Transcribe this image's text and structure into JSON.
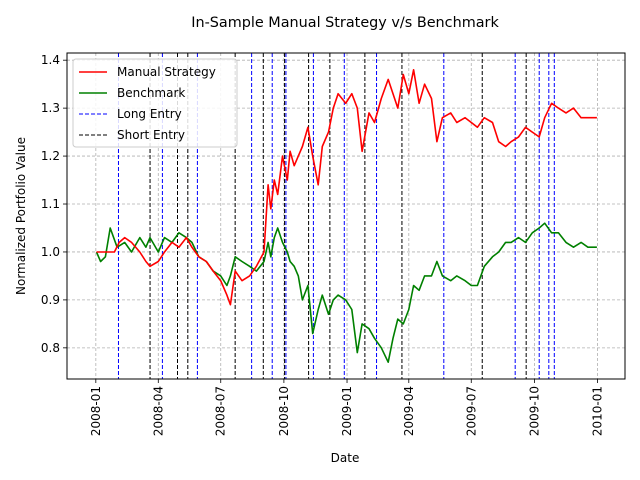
{
  "chart_data": {
    "type": "line",
    "title": "In-Sample Manual Strategy v/s Benchmark",
    "xlabel": "Date",
    "ylabel": "Normalized Portfolio Value",
    "xlim": [
      "2007-11-20",
      "2010-02-10"
    ],
    "ylim": [
      0.735,
      1.415
    ],
    "grid": true,
    "legend_position": "top-left",
    "x_ticks": [
      "2008-01",
      "2008-04",
      "2008-07",
      "2008-10",
      "2009-01",
      "2009-04",
      "2009-07",
      "2009-10",
      "2010-01"
    ],
    "y_ticks": [
      0.8,
      0.9,
      1.0,
      1.1,
      1.2,
      1.3,
      1.4
    ],
    "y_tick_labels": [
      "0.8",
      "0.9",
      "1.0",
      "1.1",
      "1.2",
      "1.3",
      "1.4"
    ],
    "legend": [
      {
        "label": "Manual Strategy",
        "color": "#ff0000",
        "style": "solid"
      },
      {
        "label": "Benchmark",
        "color": "#008000",
        "style": "solid"
      },
      {
        "label": "Long Entry",
        "color": "#0000ff",
        "style": "dashed"
      },
      {
        "label": "Short Entry",
        "color": "#000000",
        "style": "dashed"
      }
    ],
    "series": [
      {
        "name": "Manual Strategy",
        "color": "#ff0000",
        "x": [
          "2008-01-02",
          "2008-01-15",
          "2008-01-28",
          "2008-02-04",
          "2008-02-12",
          "2008-02-22",
          "2008-03-05",
          "2008-03-14",
          "2008-03-20",
          "2008-04-01",
          "2008-04-10",
          "2008-04-21",
          "2008-05-01",
          "2008-05-12",
          "2008-05-20",
          "2008-05-30",
          "2008-06-10",
          "2008-06-20",
          "2008-07-01",
          "2008-07-10",
          "2008-07-15",
          "2008-07-22",
          "2008-08-01",
          "2008-08-12",
          "2008-08-22",
          "2008-09-02",
          "2008-09-08",
          "2008-09-12",
          "2008-09-17",
          "2008-09-22",
          "2008-09-29",
          "2008-10-06",
          "2008-10-10",
          "2008-10-16",
          "2008-10-22",
          "2008-10-28",
          "2008-11-05",
          "2008-11-12",
          "2008-11-20",
          "2008-11-26",
          "2008-12-05",
          "2008-12-12",
          "2008-12-19",
          "2008-12-30",
          "2009-01-08",
          "2009-01-16",
          "2009-01-23",
          "2009-02-02",
          "2009-02-10",
          "2009-02-20",
          "2009-03-02",
          "2009-03-09",
          "2009-03-16",
          "2009-03-24",
          "2009-04-01",
          "2009-04-08",
          "2009-04-16",
          "2009-04-24",
          "2009-05-04",
          "2009-05-12",
          "2009-05-20",
          "2009-06-01",
          "2009-06-10",
          "2009-06-22",
          "2009-07-01",
          "2009-07-10",
          "2009-07-20",
          "2009-08-01",
          "2009-08-10",
          "2009-08-20",
          "2009-08-28",
          "2009-09-08",
          "2009-09-18",
          "2009-09-28",
          "2009-10-08",
          "2009-10-16",
          "2009-10-26",
          "2009-11-05",
          "2009-11-16",
          "2009-11-27",
          "2009-12-08",
          "2009-12-18",
          "2009-12-31"
        ],
        "y": [
          1.0,
          1.0,
          1.0,
          1.02,
          1.03,
          1.02,
          1.0,
          0.98,
          0.97,
          0.98,
          1.0,
          1.02,
          1.01,
          1.03,
          1.01,
          0.99,
          0.98,
          0.96,
          0.94,
          0.91,
          0.89,
          0.96,
          0.94,
          0.95,
          0.97,
          1.0,
          1.14,
          1.09,
          1.15,
          1.12,
          1.2,
          1.15,
          1.21,
          1.18,
          1.2,
          1.22,
          1.26,
          1.2,
          1.14,
          1.22,
          1.25,
          1.3,
          1.33,
          1.31,
          1.33,
          1.3,
          1.21,
          1.29,
          1.27,
          1.32,
          1.36,
          1.33,
          1.3,
          1.37,
          1.33,
          1.38,
          1.31,
          1.35,
          1.32,
          1.23,
          1.28,
          1.29,
          1.27,
          1.28,
          1.27,
          1.26,
          1.28,
          1.27,
          1.23,
          1.22,
          1.23,
          1.24,
          1.26,
          1.25,
          1.24,
          1.28,
          1.31,
          1.3,
          1.29,
          1.3,
          1.28,
          1.28,
          1.28
        ]
      },
      {
        "name": "Benchmark",
        "color": "#008000",
        "x": [
          "2008-01-02",
          "2008-01-08",
          "2008-01-15",
          "2008-01-22",
          "2008-02-01",
          "2008-02-12",
          "2008-02-22",
          "2008-03-05",
          "2008-03-14",
          "2008-03-20",
          "2008-04-01",
          "2008-04-10",
          "2008-04-21",
          "2008-05-01",
          "2008-05-12",
          "2008-05-20",
          "2008-05-30",
          "2008-06-10",
          "2008-06-20",
          "2008-07-01",
          "2008-07-10",
          "2008-07-15",
          "2008-07-22",
          "2008-08-01",
          "2008-08-12",
          "2008-08-22",
          "2008-09-02",
          "2008-09-08",
          "2008-09-12",
          "2008-09-17",
          "2008-09-22",
          "2008-09-29",
          "2008-10-06",
          "2008-10-10",
          "2008-10-16",
          "2008-10-22",
          "2008-10-28",
          "2008-11-05",
          "2008-11-12",
          "2008-11-20",
          "2008-11-26",
          "2008-12-05",
          "2008-12-12",
          "2008-12-19",
          "2008-12-30",
          "2009-01-08",
          "2009-01-16",
          "2009-01-23",
          "2009-02-02",
          "2009-02-10",
          "2009-02-20",
          "2009-03-02",
          "2009-03-09",
          "2009-03-16",
          "2009-03-24",
          "2009-04-01",
          "2009-04-08",
          "2009-04-16",
          "2009-04-24",
          "2009-05-04",
          "2009-05-12",
          "2009-05-20",
          "2009-06-01",
          "2009-06-10",
          "2009-06-22",
          "2009-07-01",
          "2009-07-10",
          "2009-07-20",
          "2009-08-01",
          "2009-08-10",
          "2009-08-20",
          "2009-08-28",
          "2009-09-08",
          "2009-09-18",
          "2009-09-28",
          "2009-10-08",
          "2009-10-16",
          "2009-10-26",
          "2009-11-05",
          "2009-11-16",
          "2009-11-27",
          "2009-12-08",
          "2009-12-18",
          "2009-12-31"
        ],
        "y": [
          1.0,
          0.98,
          0.99,
          1.05,
          1.01,
          1.02,
          1.0,
          1.03,
          1.01,
          1.03,
          1.0,
          1.03,
          1.02,
          1.04,
          1.03,
          1.02,
          0.99,
          0.98,
          0.96,
          0.95,
          0.93,
          0.95,
          0.99,
          0.98,
          0.97,
          0.96,
          0.98,
          1.02,
          0.99,
          1.03,
          1.05,
          1.02,
          1.0,
          0.98,
          0.97,
          0.95,
          0.9,
          0.93,
          0.83,
          0.88,
          0.91,
          0.87,
          0.9,
          0.91,
          0.9,
          0.88,
          0.79,
          0.85,
          0.84,
          0.82,
          0.8,
          0.77,
          0.82,
          0.86,
          0.85,
          0.88,
          0.93,
          0.92,
          0.95,
          0.95,
          0.98,
          0.95,
          0.94,
          0.95,
          0.94,
          0.93,
          0.93,
          0.97,
          0.99,
          1.0,
          1.02,
          1.02,
          1.03,
          1.02,
          1.04,
          1.05,
          1.06,
          1.04,
          1.04,
          1.02,
          1.01,
          1.02,
          1.01,
          1.01
        ]
      }
    ],
    "long_entry_dates": [
      "2008-02-03",
      "2008-04-07",
      "2008-05-28",
      "2008-08-15",
      "2008-09-14",
      "2008-10-04",
      "2008-11-13",
      "2008-12-28",
      "2009-02-13",
      "2009-05-22",
      "2009-09-03",
      "2009-10-08",
      "2009-10-22",
      "2009-10-30"
    ],
    "short_entry_dates": [
      "2008-03-20",
      "2008-04-29",
      "2008-05-14",
      "2008-07-22",
      "2008-09-01",
      "2008-10-02",
      "2008-11-06",
      "2008-12-07",
      "2009-01-27",
      "2009-03-22",
      "2009-07-17",
      "2009-09-19"
    ]
  }
}
